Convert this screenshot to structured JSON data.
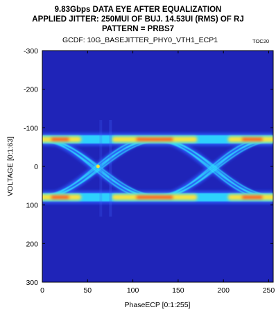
{
  "chart_data": {
    "type": "heatmap",
    "title_lines": [
      "9.83Gbps DATA EYE AFTER EQUALIZATION",
      "APPLIED JITTER: 250MUI OF BUJ. 14.53UI (RMS) OF RJ",
      "PATTERN = PRBS7"
    ],
    "subtitle": "GCDF: 10G_BASEJITTER_PHY0_VTH1_ECP1",
    "tag": "TOC20",
    "xlabel": "PhaseECP [0:1:255]",
    "ylabel": "VOLTAGE [0:1:63]",
    "xlim": [
      0,
      255
    ],
    "ylim": [
      -300,
      300
    ],
    "y_inverted": true,
    "x_ticks": [
      "0",
      "50",
      "100",
      "150",
      "200",
      "250"
    ],
    "y_ticks": [
      "-300",
      "-200",
      "-100",
      "0",
      "100",
      "200",
      "300"
    ],
    "eye": {
      "upper_rail_voltage": -70,
      "lower_rail_voltage": 80,
      "crossing_phases": [
        60,
        188
      ],
      "eye_center_phase": 135
    },
    "colors": {
      "background": "#1f24b8",
      "low": "#2b5cff",
      "mid": "#2ee8ff",
      "high_1": "#ffe23b",
      "high_2": "#ff2a18"
    }
  }
}
